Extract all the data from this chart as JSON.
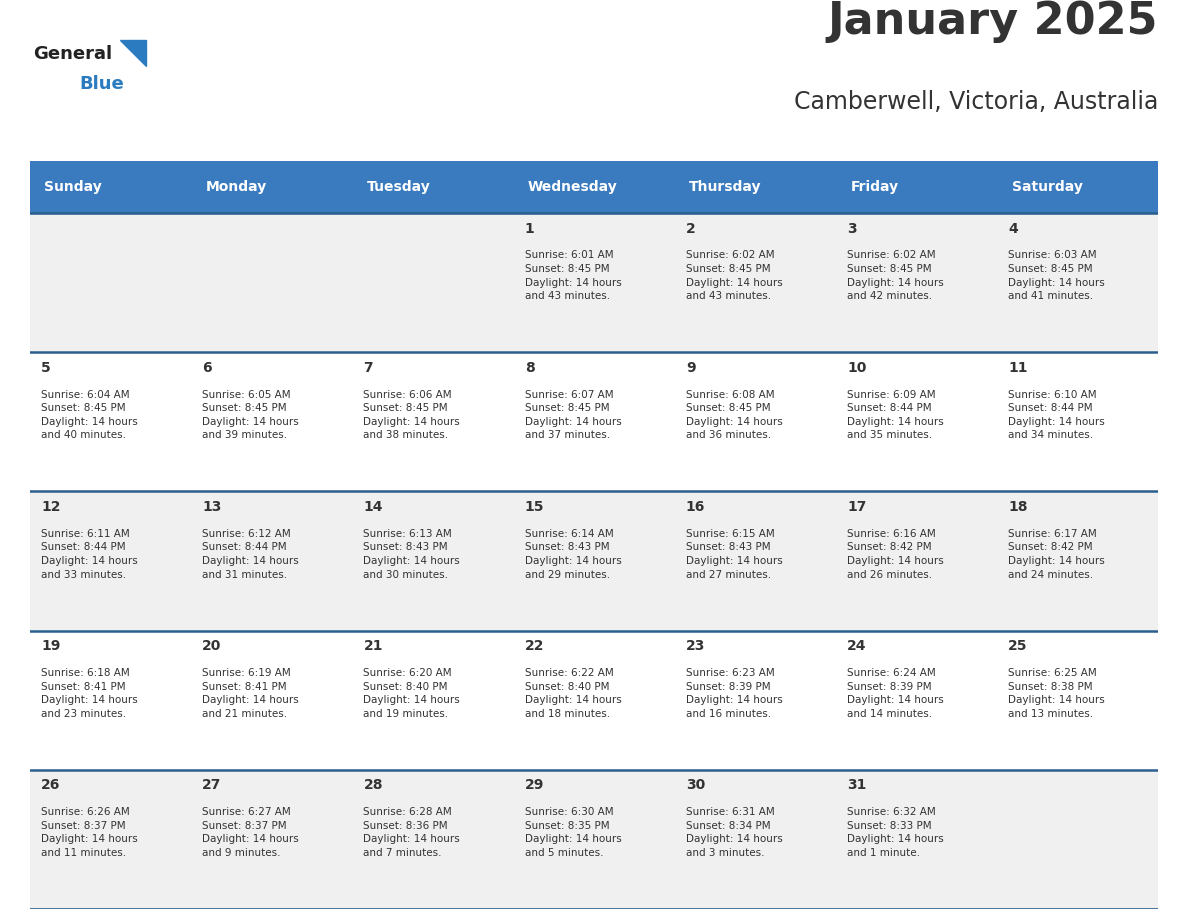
{
  "title": "January 2025",
  "subtitle": "Camberwell, Victoria, Australia",
  "header_bg_color": "#3a7bbf",
  "header_text_color": "#ffffff",
  "row_bg_even": "#f0f0f0",
  "row_bg_odd": "#ffffff",
  "border_color": "#2a5f8f",
  "text_color": "#333333",
  "day_headers": [
    "Sunday",
    "Monday",
    "Tuesday",
    "Wednesday",
    "Thursday",
    "Friday",
    "Saturday"
  ],
  "weeks": [
    {
      "days": [
        {
          "day": "",
          "info": ""
        },
        {
          "day": "",
          "info": ""
        },
        {
          "day": "",
          "info": ""
        },
        {
          "day": "1",
          "info": "Sunrise: 6:01 AM\nSunset: 8:45 PM\nDaylight: 14 hours\nand 43 minutes."
        },
        {
          "day": "2",
          "info": "Sunrise: 6:02 AM\nSunset: 8:45 PM\nDaylight: 14 hours\nand 43 minutes."
        },
        {
          "day": "3",
          "info": "Sunrise: 6:02 AM\nSunset: 8:45 PM\nDaylight: 14 hours\nand 42 minutes."
        },
        {
          "day": "4",
          "info": "Sunrise: 6:03 AM\nSunset: 8:45 PM\nDaylight: 14 hours\nand 41 minutes."
        }
      ]
    },
    {
      "days": [
        {
          "day": "5",
          "info": "Sunrise: 6:04 AM\nSunset: 8:45 PM\nDaylight: 14 hours\nand 40 minutes."
        },
        {
          "day": "6",
          "info": "Sunrise: 6:05 AM\nSunset: 8:45 PM\nDaylight: 14 hours\nand 39 minutes."
        },
        {
          "day": "7",
          "info": "Sunrise: 6:06 AM\nSunset: 8:45 PM\nDaylight: 14 hours\nand 38 minutes."
        },
        {
          "day": "8",
          "info": "Sunrise: 6:07 AM\nSunset: 8:45 PM\nDaylight: 14 hours\nand 37 minutes."
        },
        {
          "day": "9",
          "info": "Sunrise: 6:08 AM\nSunset: 8:45 PM\nDaylight: 14 hours\nand 36 minutes."
        },
        {
          "day": "10",
          "info": "Sunrise: 6:09 AM\nSunset: 8:44 PM\nDaylight: 14 hours\nand 35 minutes."
        },
        {
          "day": "11",
          "info": "Sunrise: 6:10 AM\nSunset: 8:44 PM\nDaylight: 14 hours\nand 34 minutes."
        }
      ]
    },
    {
      "days": [
        {
          "day": "12",
          "info": "Sunrise: 6:11 AM\nSunset: 8:44 PM\nDaylight: 14 hours\nand 33 minutes."
        },
        {
          "day": "13",
          "info": "Sunrise: 6:12 AM\nSunset: 8:44 PM\nDaylight: 14 hours\nand 31 minutes."
        },
        {
          "day": "14",
          "info": "Sunrise: 6:13 AM\nSunset: 8:43 PM\nDaylight: 14 hours\nand 30 minutes."
        },
        {
          "day": "15",
          "info": "Sunrise: 6:14 AM\nSunset: 8:43 PM\nDaylight: 14 hours\nand 29 minutes."
        },
        {
          "day": "16",
          "info": "Sunrise: 6:15 AM\nSunset: 8:43 PM\nDaylight: 14 hours\nand 27 minutes."
        },
        {
          "day": "17",
          "info": "Sunrise: 6:16 AM\nSunset: 8:42 PM\nDaylight: 14 hours\nand 26 minutes."
        },
        {
          "day": "18",
          "info": "Sunrise: 6:17 AM\nSunset: 8:42 PM\nDaylight: 14 hours\nand 24 minutes."
        }
      ]
    },
    {
      "days": [
        {
          "day": "19",
          "info": "Sunrise: 6:18 AM\nSunset: 8:41 PM\nDaylight: 14 hours\nand 23 minutes."
        },
        {
          "day": "20",
          "info": "Sunrise: 6:19 AM\nSunset: 8:41 PM\nDaylight: 14 hours\nand 21 minutes."
        },
        {
          "day": "21",
          "info": "Sunrise: 6:20 AM\nSunset: 8:40 PM\nDaylight: 14 hours\nand 19 minutes."
        },
        {
          "day": "22",
          "info": "Sunrise: 6:22 AM\nSunset: 8:40 PM\nDaylight: 14 hours\nand 18 minutes."
        },
        {
          "day": "23",
          "info": "Sunrise: 6:23 AM\nSunset: 8:39 PM\nDaylight: 14 hours\nand 16 minutes."
        },
        {
          "day": "24",
          "info": "Sunrise: 6:24 AM\nSunset: 8:39 PM\nDaylight: 14 hours\nand 14 minutes."
        },
        {
          "day": "25",
          "info": "Sunrise: 6:25 AM\nSunset: 8:38 PM\nDaylight: 14 hours\nand 13 minutes."
        }
      ]
    },
    {
      "days": [
        {
          "day": "26",
          "info": "Sunrise: 6:26 AM\nSunset: 8:37 PM\nDaylight: 14 hours\nand 11 minutes."
        },
        {
          "day": "27",
          "info": "Sunrise: 6:27 AM\nSunset: 8:37 PM\nDaylight: 14 hours\nand 9 minutes."
        },
        {
          "day": "28",
          "info": "Sunrise: 6:28 AM\nSunset: 8:36 PM\nDaylight: 14 hours\nand 7 minutes."
        },
        {
          "day": "29",
          "info": "Sunrise: 6:30 AM\nSunset: 8:35 PM\nDaylight: 14 hours\nand 5 minutes."
        },
        {
          "day": "30",
          "info": "Sunrise: 6:31 AM\nSunset: 8:34 PM\nDaylight: 14 hours\nand 3 minutes."
        },
        {
          "day": "31",
          "info": "Sunrise: 6:32 AM\nSunset: 8:33 PM\nDaylight: 14 hours\nand 1 minute."
        },
        {
          "day": "",
          "info": ""
        }
      ]
    }
  ],
  "logo_color_general": "#222222",
  "logo_color_blue": "#2a7bbf",
  "logo_triangle_color": "#2a7bbf",
  "title_fontsize": 32,
  "subtitle_fontsize": 17,
  "header_fontsize": 10,
  "day_number_fontsize": 10,
  "info_fontsize": 7.5
}
